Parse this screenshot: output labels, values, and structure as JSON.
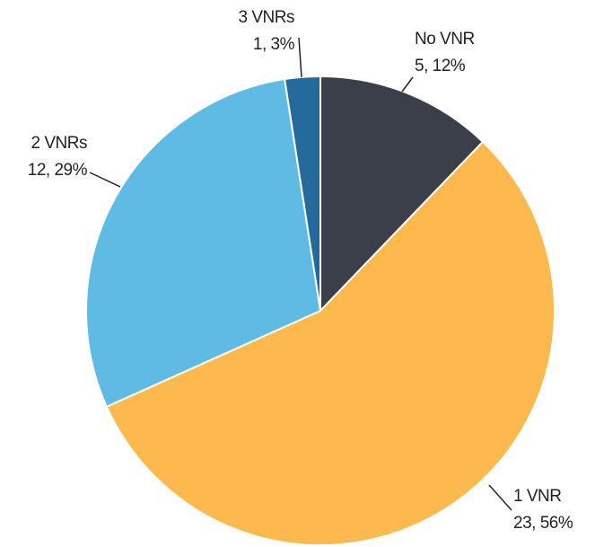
{
  "chart_data": {
    "type": "pie",
    "categories": [
      "No VNR",
      "1 VNR",
      "2 VNRs",
      "3 VNRs"
    ],
    "values": [
      5,
      23,
      12,
      1
    ],
    "value_labels": [
      "5, 12%",
      "23, 56%",
      "12, 29%",
      "1, 3%"
    ],
    "colors": [
      "#3b3f4a",
      "#fdb94e",
      "#5fbbe3",
      "#246a9a"
    ]
  }
}
